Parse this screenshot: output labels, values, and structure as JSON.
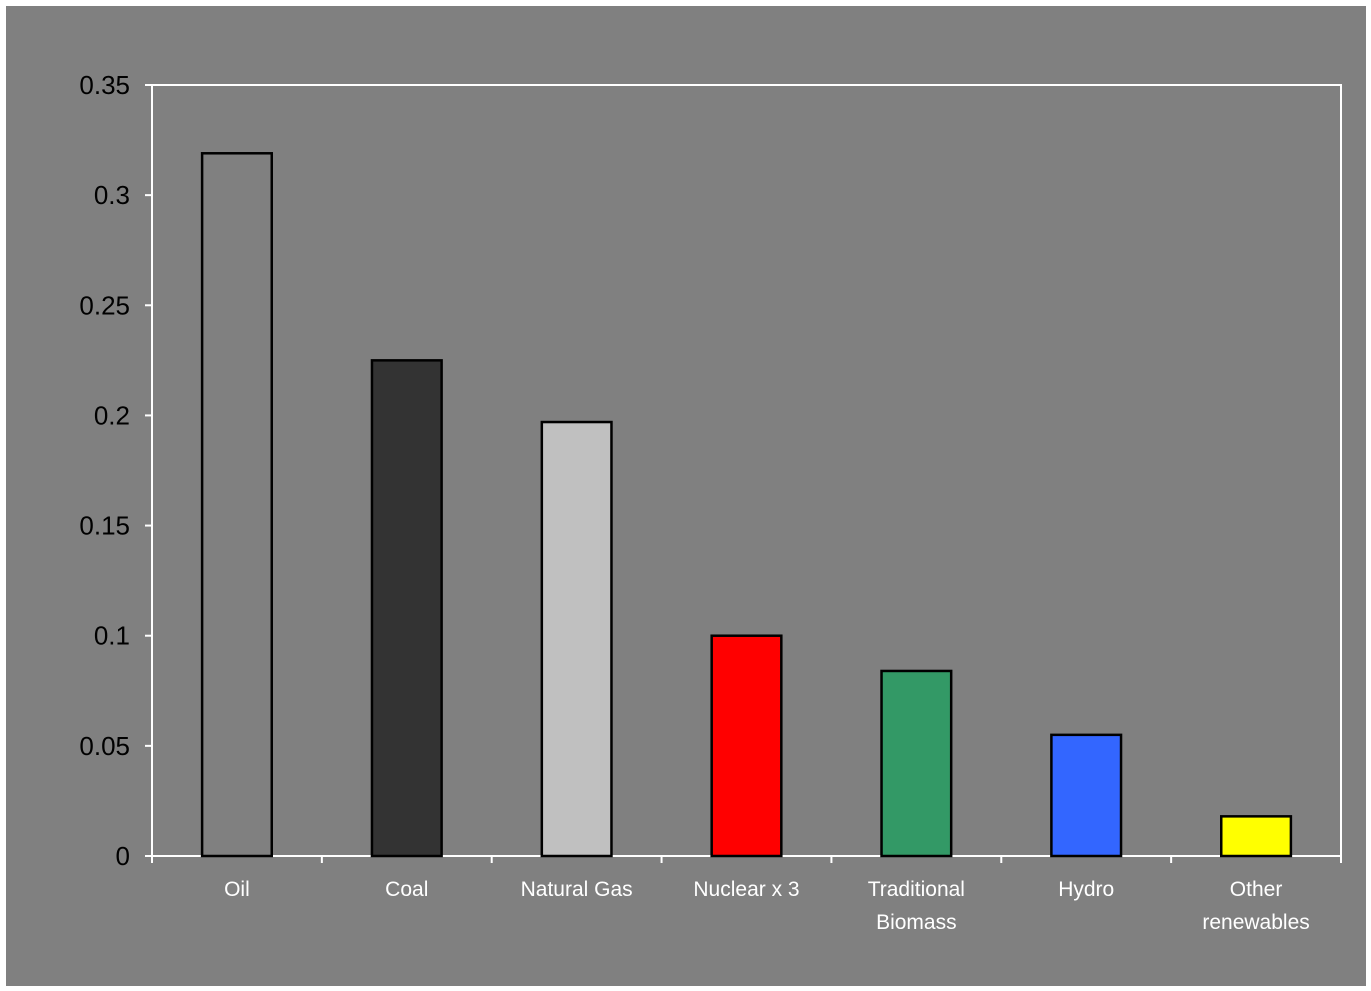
{
  "chart_data": {
    "type": "bar",
    "title": "",
    "xlabel": "",
    "ylabel": "",
    "ylim": [
      0,
      0.35
    ],
    "yticks": [
      0,
      0.05,
      0.1,
      0.15,
      0.2,
      0.25,
      0.3,
      0.35
    ],
    "ytick_labels": [
      "0",
      "0.05",
      "0.1",
      "0.15",
      "0.2",
      "0.25",
      "0.3",
      "0.35"
    ],
    "grid": false,
    "legend": "none",
    "categories": [
      [
        "Oil"
      ],
      [
        "Coal"
      ],
      [
        "Natural Gas"
      ],
      [
        "Nuclear x 3"
      ],
      [
        "Traditional",
        "Biomass"
      ],
      [
        "Hydro"
      ],
      [
        "Other",
        "renewables"
      ]
    ],
    "values": [
      0.319,
      0.225,
      0.197,
      0.1,
      0.084,
      0.055,
      0.018
    ],
    "colors": [
      "#808080",
      "#333333",
      "#c0c0c0",
      "#ff0000",
      "#339966",
      "#3366ff",
      "#ffff00"
    ],
    "plot_background": "#808080",
    "axis_color": "#ffffff"
  }
}
